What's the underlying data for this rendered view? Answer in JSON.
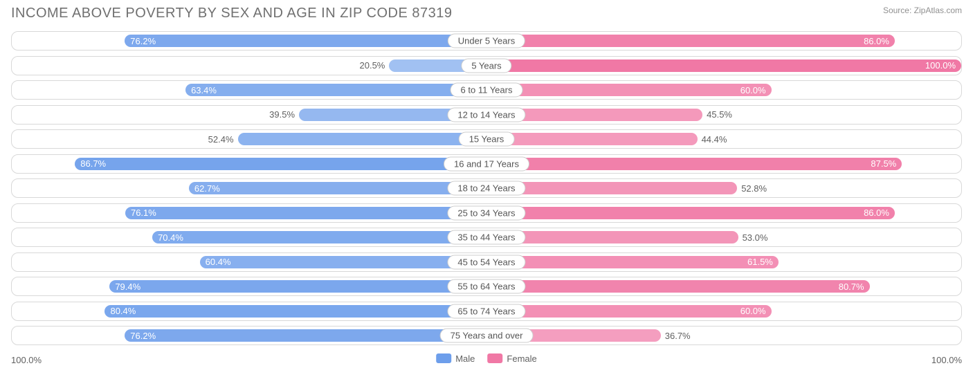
{
  "title": "INCOME ABOVE POVERTY BY SEX AND AGE IN ZIP CODE 87319",
  "source": "Source: ZipAtlas.com",
  "axis_max_label": "100.0%",
  "legend": {
    "male": {
      "label": "Male",
      "color": "#6d9eeb"
    },
    "female": {
      "label": "Female",
      "color": "#f078a5"
    }
  },
  "colors": {
    "male_base": "#6d9eeb",
    "female_base": "#f078a5",
    "row_border": "#d8d8d8",
    "text_gray": "#606060"
  },
  "inside_label_threshold": 55,
  "bar_alpha_min": 0.55,
  "bar_alpha_max": 1.0,
  "rows": [
    {
      "label": "Under 5 Years",
      "male": 76.2,
      "female": 86.0
    },
    {
      "label": "5 Years",
      "male": 20.5,
      "female": 100.0
    },
    {
      "label": "6 to 11 Years",
      "male": 63.4,
      "female": 60.0
    },
    {
      "label": "12 to 14 Years",
      "male": 39.5,
      "female": 45.5
    },
    {
      "label": "15 Years",
      "male": 52.4,
      "female": 44.4
    },
    {
      "label": "16 and 17 Years",
      "male": 86.7,
      "female": 87.5
    },
    {
      "label": "18 to 24 Years",
      "male": 62.7,
      "female": 52.8
    },
    {
      "label": "25 to 34 Years",
      "male": 76.1,
      "female": 86.0
    },
    {
      "label": "35 to 44 Years",
      "male": 70.4,
      "female": 53.0
    },
    {
      "label": "45 to 54 Years",
      "male": 60.4,
      "female": 61.5
    },
    {
      "label": "55 to 64 Years",
      "male": 79.4,
      "female": 80.7
    },
    {
      "label": "65 to 74 Years",
      "male": 80.4,
      "female": 60.0
    },
    {
      "label": "75 Years and over",
      "male": 76.2,
      "female": 36.7
    }
  ]
}
